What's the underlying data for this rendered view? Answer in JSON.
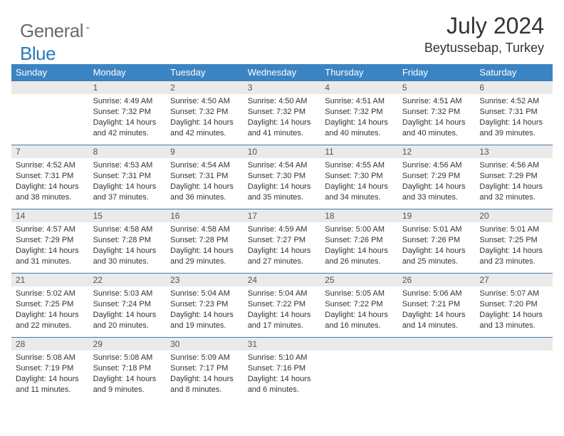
{
  "logo": {
    "word1": "General",
    "word2": "Blue"
  },
  "month_title": "July 2024",
  "location": "Beytussebap, Turkey",
  "colors": {
    "header_bg": "#3b84c4",
    "header_text": "#ffffff",
    "daynum_bg": "#eaeaea",
    "cell_border": "#4a76a8",
    "logo_gray": "#6a6a6a",
    "logo_blue": "#2a7ab8"
  },
  "day_headers": [
    "Sunday",
    "Monday",
    "Tuesday",
    "Wednesday",
    "Thursday",
    "Friday",
    "Saturday"
  ],
  "weeks": [
    [
      null,
      {
        "n": "1",
        "sr": "4:49 AM",
        "ss": "7:32 PM",
        "dl": "14 hours and 42 minutes."
      },
      {
        "n": "2",
        "sr": "4:50 AM",
        "ss": "7:32 PM",
        "dl": "14 hours and 42 minutes."
      },
      {
        "n": "3",
        "sr": "4:50 AM",
        "ss": "7:32 PM",
        "dl": "14 hours and 41 minutes."
      },
      {
        "n": "4",
        "sr": "4:51 AM",
        "ss": "7:32 PM",
        "dl": "14 hours and 40 minutes."
      },
      {
        "n": "5",
        "sr": "4:51 AM",
        "ss": "7:32 PM",
        "dl": "14 hours and 40 minutes."
      },
      {
        "n": "6",
        "sr": "4:52 AM",
        "ss": "7:31 PM",
        "dl": "14 hours and 39 minutes."
      }
    ],
    [
      {
        "n": "7",
        "sr": "4:52 AM",
        "ss": "7:31 PM",
        "dl": "14 hours and 38 minutes."
      },
      {
        "n": "8",
        "sr": "4:53 AM",
        "ss": "7:31 PM",
        "dl": "14 hours and 37 minutes."
      },
      {
        "n": "9",
        "sr": "4:54 AM",
        "ss": "7:31 PM",
        "dl": "14 hours and 36 minutes."
      },
      {
        "n": "10",
        "sr": "4:54 AM",
        "ss": "7:30 PM",
        "dl": "14 hours and 35 minutes."
      },
      {
        "n": "11",
        "sr": "4:55 AM",
        "ss": "7:30 PM",
        "dl": "14 hours and 34 minutes."
      },
      {
        "n": "12",
        "sr": "4:56 AM",
        "ss": "7:29 PM",
        "dl": "14 hours and 33 minutes."
      },
      {
        "n": "13",
        "sr": "4:56 AM",
        "ss": "7:29 PM",
        "dl": "14 hours and 32 minutes."
      }
    ],
    [
      {
        "n": "14",
        "sr": "4:57 AM",
        "ss": "7:29 PM",
        "dl": "14 hours and 31 minutes."
      },
      {
        "n": "15",
        "sr": "4:58 AM",
        "ss": "7:28 PM",
        "dl": "14 hours and 30 minutes."
      },
      {
        "n": "16",
        "sr": "4:58 AM",
        "ss": "7:28 PM",
        "dl": "14 hours and 29 minutes."
      },
      {
        "n": "17",
        "sr": "4:59 AM",
        "ss": "7:27 PM",
        "dl": "14 hours and 27 minutes."
      },
      {
        "n": "18",
        "sr": "5:00 AM",
        "ss": "7:26 PM",
        "dl": "14 hours and 26 minutes."
      },
      {
        "n": "19",
        "sr": "5:01 AM",
        "ss": "7:26 PM",
        "dl": "14 hours and 25 minutes."
      },
      {
        "n": "20",
        "sr": "5:01 AM",
        "ss": "7:25 PM",
        "dl": "14 hours and 23 minutes."
      }
    ],
    [
      {
        "n": "21",
        "sr": "5:02 AM",
        "ss": "7:25 PM",
        "dl": "14 hours and 22 minutes."
      },
      {
        "n": "22",
        "sr": "5:03 AM",
        "ss": "7:24 PM",
        "dl": "14 hours and 20 minutes."
      },
      {
        "n": "23",
        "sr": "5:04 AM",
        "ss": "7:23 PM",
        "dl": "14 hours and 19 minutes."
      },
      {
        "n": "24",
        "sr": "5:04 AM",
        "ss": "7:22 PM",
        "dl": "14 hours and 17 minutes."
      },
      {
        "n": "25",
        "sr": "5:05 AM",
        "ss": "7:22 PM",
        "dl": "14 hours and 16 minutes."
      },
      {
        "n": "26",
        "sr": "5:06 AM",
        "ss": "7:21 PM",
        "dl": "14 hours and 14 minutes."
      },
      {
        "n": "27",
        "sr": "5:07 AM",
        "ss": "7:20 PM",
        "dl": "14 hours and 13 minutes."
      }
    ],
    [
      {
        "n": "28",
        "sr": "5:08 AM",
        "ss": "7:19 PM",
        "dl": "14 hours and 11 minutes."
      },
      {
        "n": "29",
        "sr": "5:08 AM",
        "ss": "7:18 PM",
        "dl": "14 hours and 9 minutes."
      },
      {
        "n": "30",
        "sr": "5:09 AM",
        "ss": "7:17 PM",
        "dl": "14 hours and 8 minutes."
      },
      {
        "n": "31",
        "sr": "5:10 AM",
        "ss": "7:16 PM",
        "dl": "14 hours and 6 minutes."
      },
      null,
      null,
      null
    ]
  ],
  "labels": {
    "sunrise": "Sunrise:",
    "sunset": "Sunset:",
    "daylight": "Daylight:"
  }
}
